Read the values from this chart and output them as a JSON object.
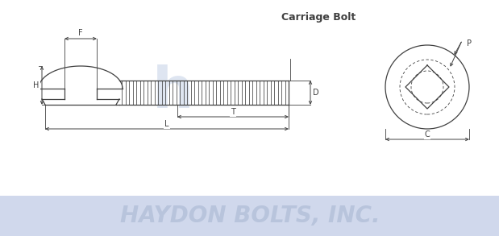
{
  "title": "Carriage Bolt",
  "bg_color": "#ffffff",
  "line_color": "#404040",
  "watermark_text": "HAYDON BOLTS, INC.",
  "watermark_bar_color": "#d0d8ec",
  "watermark_text_color": "#b8c4dc",
  "label_H": "H",
  "label_F": "F",
  "label_D": "D",
  "label_T": "T",
  "label_L": "L",
  "label_C": "C",
  "label_P": "P",
  "haydon_logo_color": "#c8d4e8"
}
